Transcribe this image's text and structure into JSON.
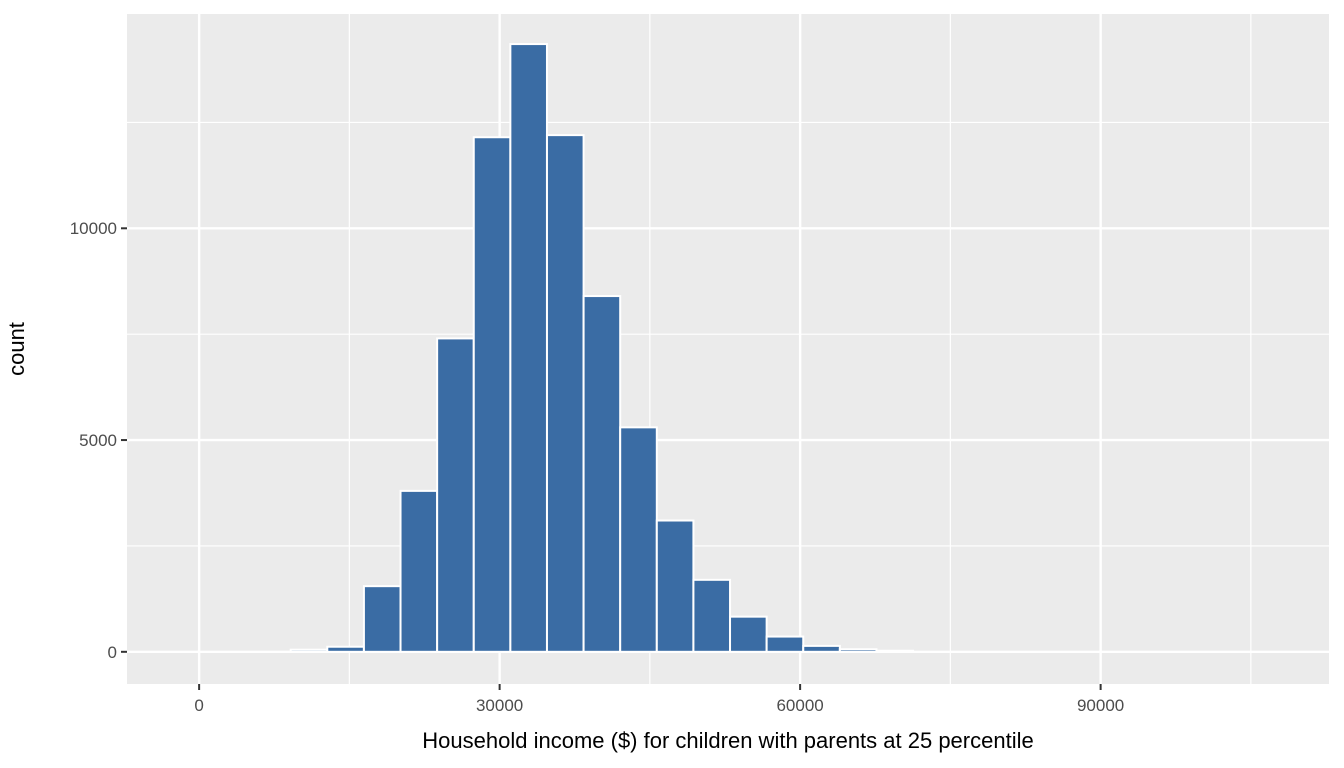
{
  "figure": {
    "kind": "ggplot-histogram",
    "background": "#FFFFFF"
  },
  "chart_data": {
    "type": "bar",
    "subtype": "histogram",
    "title": "",
    "xlabel": "Household income ($) for children with parents at 25 percentile",
    "ylabel": "count",
    "bin_width": 3655,
    "bin_centers": [
      10970,
      14625,
      18280,
      21935,
      25590,
      29245,
      32900,
      36555,
      40210,
      43865,
      47520,
      51175,
      54830,
      58485,
      62140,
      65795,
      69450
    ],
    "counts": [
      50,
      120,
      1550,
      3800,
      7400,
      12150,
      14350,
      12200,
      8400,
      5300,
      3100,
      1700,
      830,
      360,
      140,
      60,
      25
    ],
    "x_ticks": [
      0,
      30000,
      60000,
      90000
    ],
    "x_tick_labels": [
      "0",
      "30000",
      "60000",
      "90000"
    ],
    "x_minor_ticks": [
      15000,
      45000,
      75000,
      105000
    ],
    "y_ticks": [
      0,
      5000,
      10000
    ],
    "y_tick_labels": [
      "0",
      "5000",
      "10000"
    ],
    "y_minor_ticks": [
      2500,
      7500,
      12500
    ],
    "xlim": [
      -7200,
      112800
    ],
    "ylim": [
      -760,
      15060
    ],
    "grid": true,
    "legend": false,
    "colors": {
      "bar_fill": "#3A6CA4",
      "bar_stroke": "#FFFFFF",
      "panel_bg": "#EBEBEB",
      "grid_major": "#FFFFFF",
      "grid_minor": "#FFFFFF",
      "tick_mark": "#333333",
      "tick_label": "#4D4D4D",
      "axis_title": "#000000"
    }
  }
}
